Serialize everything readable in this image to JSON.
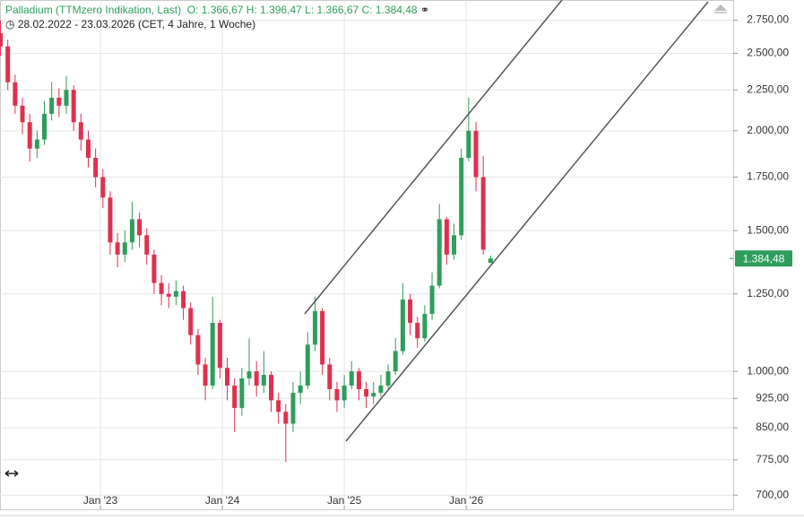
{
  "header": {
    "instrument": "Palladium (TTMzero Indikation, Last)",
    "ohlc": "O: 1.366,67  H: 1.396,47  L: 1.366,67  C: 1.384,48",
    "range": "28.02.2022 - 23.03.2026  (CET, 4 Jahre, 1 Woche)"
  },
  "chart_data": {
    "type": "candlestick",
    "log_scale": true,
    "grid": true,
    "up_color": "#2e9e5b",
    "down_color": "#e0304f",
    "x": [
      2022.18,
      2022.24,
      2022.3,
      2022.36,
      2022.42,
      2022.48,
      2022.54,
      2022.6,
      2022.66,
      2022.72,
      2022.78,
      2022.84,
      2022.9,
      2022.96,
      2023.02,
      2023.08,
      2023.14,
      2023.2,
      2023.26,
      2023.32,
      2023.38,
      2023.44,
      2023.5,
      2023.56,
      2023.62,
      2023.68,
      2023.74,
      2023.8,
      2023.86,
      2023.92,
      2023.98,
      2024.04,
      2024.1,
      2024.16,
      2024.22,
      2024.28,
      2024.34,
      2024.4,
      2024.46,
      2024.52,
      2024.58,
      2024.64,
      2024.7,
      2024.76,
      2024.82,
      2024.88,
      2024.94,
      2025.0,
      2025.06,
      2025.12,
      2025.18,
      2025.24,
      2025.3,
      2025.36,
      2025.42,
      2025.48,
      2025.54,
      2025.6,
      2025.66,
      2025.72,
      2025.78,
      2025.84,
      2025.9,
      2025.96,
      2026.02,
      2026.08,
      2026.14,
      2026.2
    ],
    "open": [
      2650,
      2550,
      2300,
      2150,
      2050,
      1900,
      1950,
      2100,
      2200,
      2150,
      2250,
      2050,
      1950,
      1850,
      1750,
      1650,
      1450,
      1400,
      1450,
      1550,
      1480,
      1400,
      1290,
      1250,
      1240,
      1260,
      1200,
      1110,
      1020,
      960,
      1150,
      1010,
      960,
      900,
      980,
      1000,
      960,
      990,
      920,
      890,
      860,
      940,
      960,
      1080,
      1190,
      1020,
      950,
      920,
      960,
      1000,
      950,
      930,
      940,
      960,
      1000,
      1060,
      1230,
      1150,
      1100,
      1180,
      1280,
      1550,
      1400,
      1480,
      1850,
      2000,
      1750,
      1366.67
    ],
    "high": [
      2750,
      2600,
      2350,
      2200,
      2100,
      2000,
      2180,
      2300,
      2260,
      2340,
      2280,
      2100,
      2000,
      1900,
      1790,
      1680,
      1490,
      1500,
      1630,
      1580,
      1510,
      1420,
      1320,
      1290,
      1300,
      1280,
      1220,
      1130,
      1040,
      1240,
      1160,
      1040,
      980,
      1010,
      1100,
      1030,
      1060,
      1000,
      940,
      910,
      970,
      1000,
      1120,
      1240,
      1200,
      1040,
      970,
      990,
      1030,
      1010,
      970,
      970,
      990,
      1020,
      1100,
      1290,
      1250,
      1170,
      1210,
      1330,
      1620,
      1560,
      1530,
      1900,
      2200,
      2050,
      1860,
      1396.47
    ],
    "low": [
      2480,
      2250,
      2100,
      1980,
      1830,
      1850,
      1920,
      2060,
      2080,
      2100,
      2000,
      1890,
      1800,
      1700,
      1600,
      1400,
      1350,
      1370,
      1420,
      1430,
      1360,
      1250,
      1210,
      1200,
      1210,
      1160,
      1080,
      990,
      920,
      950,
      980,
      920,
      840,
      880,
      960,
      930,
      940,
      890,
      860,
      770,
      840,
      910,
      950,
      1060,
      990,
      920,
      890,
      900,
      950,
      920,
      900,
      910,
      930,
      950,
      990,
      1050,
      1110,
      1070,
      1090,
      1160,
      1270,
      1360,
      1380,
      1460,
      1830,
      1680,
      1400,
      1366.67
    ],
    "close": [
      2550,
      2300,
      2150,
      2050,
      1900,
      1950,
      2100,
      2200,
      2150,
      2250,
      2050,
      1950,
      1850,
      1750,
      1650,
      1450,
      1400,
      1450,
      1550,
      1480,
      1400,
      1290,
      1250,
      1240,
      1260,
      1200,
      1110,
      1020,
      960,
      1150,
      1010,
      960,
      900,
      980,
      1000,
      960,
      990,
      920,
      890,
      860,
      940,
      960,
      1080,
      1190,
      1020,
      950,
      920,
      960,
      1000,
      950,
      930,
      940,
      960,
      1000,
      1060,
      1230,
      1150,
      1100,
      1180,
      1280,
      1550,
      1400,
      1480,
      1850,
      2000,
      1750,
      1420,
      1384.48
    ],
    "last_label": "1.384,48",
    "xlim": [
      2022.176,
      2028.19
    ],
    "ylim": [
      672,
      2915
    ],
    "xticks": [
      {
        "value": 2023,
        "label": "Jan '23"
      },
      {
        "value": 2024,
        "label": "Jan '24"
      },
      {
        "value": 2025,
        "label": "Jan '25"
      },
      {
        "value": 2026,
        "label": "Jan '26"
      }
    ],
    "yticks": [
      {
        "value": 700,
        "label": "700,00"
      },
      {
        "value": 775,
        "label": "775,00"
      },
      {
        "value": 850,
        "label": "850,00"
      },
      {
        "value": 925,
        "label": "925,00"
      },
      {
        "value": 1000,
        "label": "1.000,00"
      },
      {
        "value": 1250,
        "label": "1.250,00"
      },
      {
        "value": 1500,
        "label": "1.500,00"
      },
      {
        "value": 1750,
        "label": "1.750,00"
      },
      {
        "value": 2000,
        "label": "2.000,00"
      },
      {
        "value": 2250,
        "label": "2.250,00"
      },
      {
        "value": 2500,
        "label": "2.500,00"
      },
      {
        "value": 2750,
        "label": "2.750,00"
      }
    ]
  }
}
